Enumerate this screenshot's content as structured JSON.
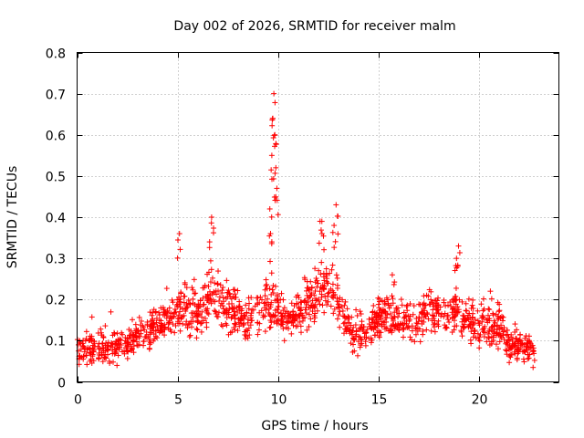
{
  "chart_data": {
    "type": "scatter",
    "title": "Day 002 of 2026, SRMTID for receiver malm",
    "xlabel": "GPS time / hours",
    "ylabel": "SRMTID / TECUs",
    "xlim": [
      0,
      24
    ],
    "ylim": [
      0,
      0.8
    ],
    "xticks": [
      0,
      5,
      10,
      15,
      20
    ],
    "xtick_labels": [
      "0",
      "5",
      "10",
      "15",
      "20"
    ],
    "yticks": [
      0,
      0.1,
      0.2,
      0.3,
      0.4,
      0.5,
      0.6,
      0.7,
      0.8
    ],
    "ytick_labels": [
      "0",
      "0.1",
      "0.2",
      "0.3",
      "0.4",
      "0.5",
      "0.6",
      "0.7",
      "0.8"
    ],
    "grid": true,
    "marker": "+",
    "color": "#ff0000",
    "trend": {
      "x": [
        0.0,
        0.5,
        1.0,
        1.5,
        2.0,
        2.5,
        3.0,
        3.5,
        4.0,
        4.5,
        5.0,
        5.5,
        6.0,
        6.5,
        7.0,
        7.5,
        8.0,
        8.5,
        9.0,
        9.5,
        10.0,
        10.5,
        11.0,
        11.5,
        12.0,
        12.5,
        13.0,
        13.5,
        14.0,
        14.5,
        15.0,
        15.5,
        16.0,
        16.5,
        17.0,
        17.5,
        18.0,
        18.5,
        19.0,
        19.5,
        20.0,
        20.5,
        21.0,
        21.5,
        22.0,
        22.5,
        22.8
      ],
      "y": [
        0.08,
        0.08,
        0.07,
        0.08,
        0.09,
        0.09,
        0.11,
        0.13,
        0.14,
        0.15,
        0.18,
        0.17,
        0.16,
        0.21,
        0.2,
        0.18,
        0.16,
        0.15,
        0.17,
        0.19,
        0.17,
        0.15,
        0.17,
        0.19,
        0.22,
        0.22,
        0.19,
        0.13,
        0.12,
        0.12,
        0.15,
        0.16,
        0.15,
        0.14,
        0.14,
        0.17,
        0.17,
        0.16,
        0.17,
        0.15,
        0.13,
        0.14,
        0.14,
        0.09,
        0.08,
        0.08,
        0.08
      ]
    },
    "highlights": [
      {
        "x": 5.1,
        "y": 0.36
      },
      {
        "x": 6.6,
        "y": 0.34
      },
      {
        "x": 6.7,
        "y": 0.4
      },
      {
        "x": 9.6,
        "y": 0.42
      },
      {
        "x": 9.7,
        "y": 0.55
      },
      {
        "x": 9.75,
        "y": 0.64
      },
      {
        "x": 9.8,
        "y": 0.7
      },
      {
        "x": 9.85,
        "y": 0.6
      },
      {
        "x": 9.9,
        "y": 0.52
      },
      {
        "x": 9.95,
        "y": 0.47
      },
      {
        "x": 9.7,
        "y": 0.34
      },
      {
        "x": 12.1,
        "y": 0.39
      },
      {
        "x": 12.2,
        "y": 0.36
      },
      {
        "x": 12.9,
        "y": 0.43
      },
      {
        "x": 12.8,
        "y": 0.38
      },
      {
        "x": 15.7,
        "y": 0.26
      },
      {
        "x": 19.0,
        "y": 0.33
      },
      {
        "x": 18.9,
        "y": 0.3
      }
    ]
  }
}
